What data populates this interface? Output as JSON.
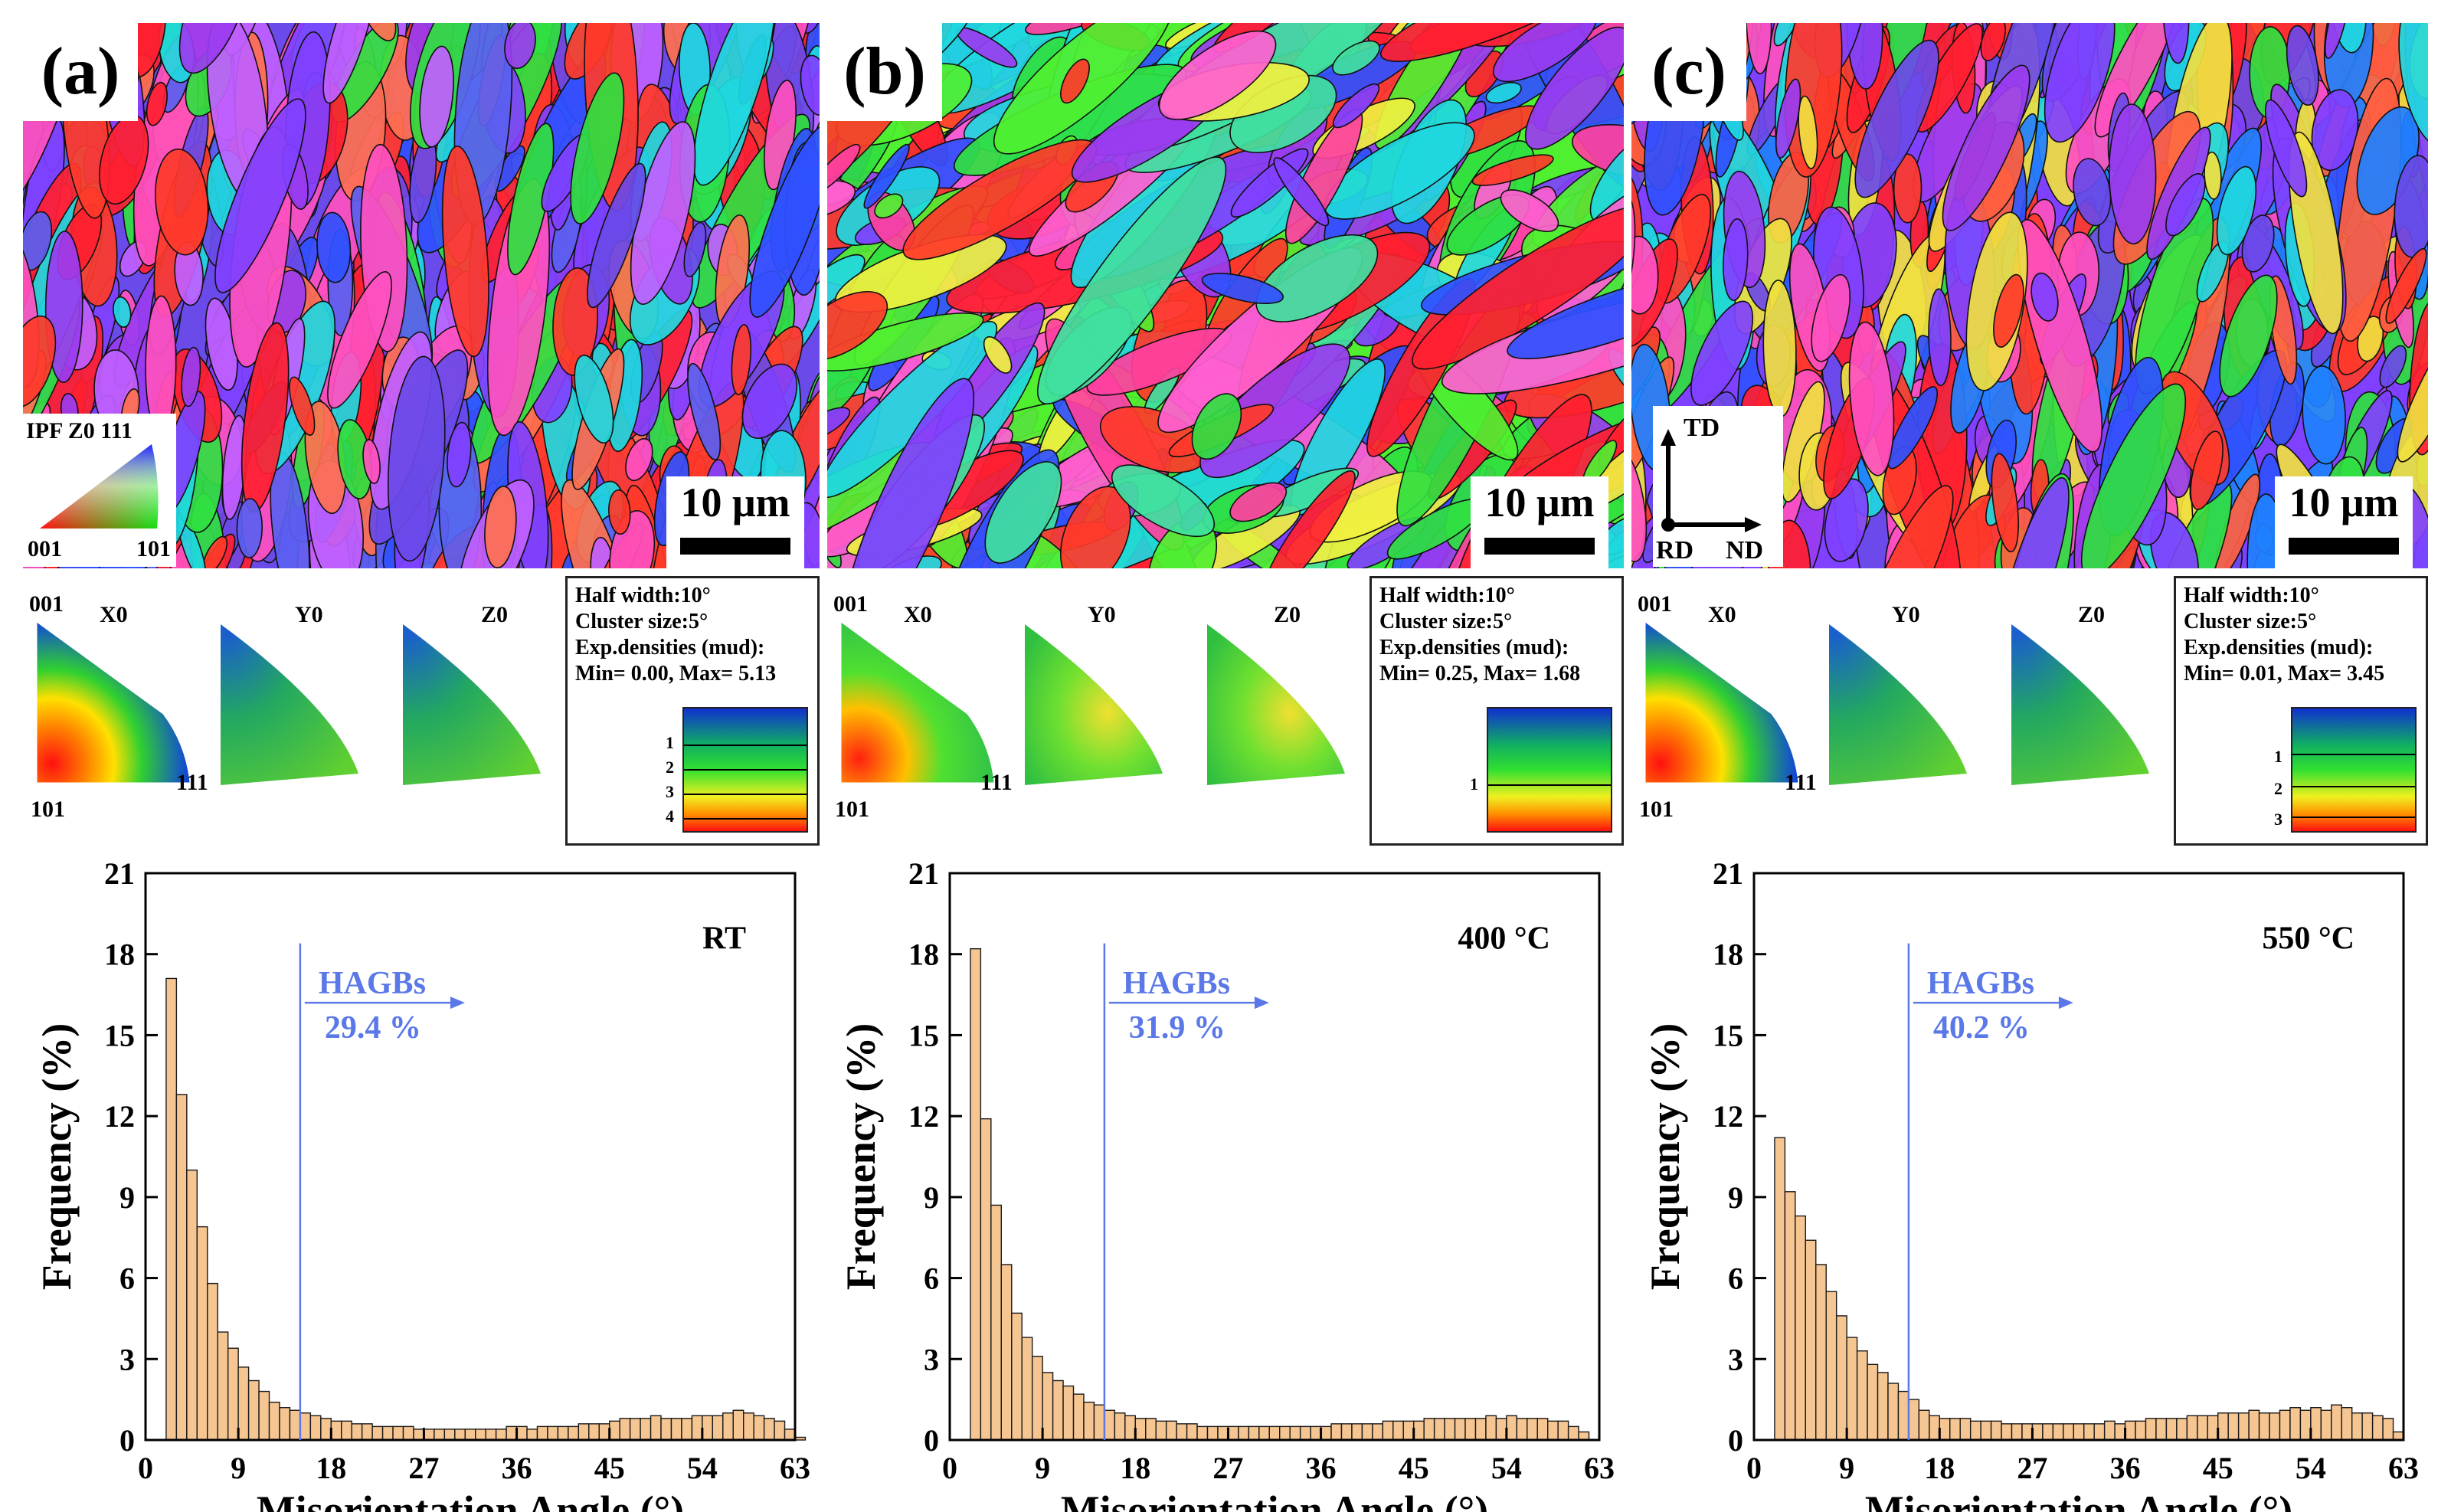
{
  "figure": {
    "panels": [
      {
        "label": "(a)",
        "scale_bar": "10 μm",
        "ipf_key": {
          "title": "IPF Z0 111",
          "corner_001": "001",
          "corner_101": "101"
        },
        "pole_figure": {
          "corner_001": "001",
          "corner_101": "101",
          "corner_111": "111",
          "titles": [
            "X0",
            "Y0",
            "Z0"
          ]
        },
        "legend": {
          "half_width": "Half width:10°",
          "cluster_size": "Cluster size:5°",
          "exp_densities": "Exp.densities (mud):",
          "min_max": "Min= 0.00, Max= 5.13",
          "ticks": [
            "1",
            "2",
            "3",
            "4"
          ]
        }
      },
      {
        "label": "(b)",
        "scale_bar": "10 μm",
        "pole_figure": {
          "corner_001": "001",
          "corner_101": "101",
          "corner_111": "111",
          "titles": [
            "X0",
            "Y0",
            "Z0"
          ]
        },
        "legend": {
          "half_width": "Half width:10°",
          "cluster_size": "Cluster size:5°",
          "exp_densities": "Exp.densities (mud):",
          "min_max": "Min= 0.25, Max= 1.68",
          "ticks": [
            "1"
          ]
        }
      },
      {
        "label": "(c)",
        "scale_bar": "10 μm",
        "axes_key": {
          "td": "TD",
          "rd": "RD",
          "nd": "ND"
        },
        "pole_figure": {
          "corner_001": "001",
          "corner_101": "101",
          "corner_111": "111",
          "titles": [
            "X0",
            "Y0",
            "Z0"
          ]
        },
        "legend": {
          "half_width": "Half width:10°",
          "cluster_size": "Cluster size:5°",
          "exp_densities": "Exp.densities (mud):",
          "min_max": "Min= 0.01, Max= 3.45",
          "ticks": [
            "1",
            "2",
            "3"
          ]
        }
      }
    ],
    "colors": {
      "bar_fill": "#f5c592",
      "bar_edge": "#1a1a1a",
      "hagb_line": "#5a78e8",
      "hagb_text": "#5a78e8"
    }
  },
  "chart_data": [
    {
      "type": "bar",
      "title": "RT",
      "xlabel": "Misorientation Angle (°)",
      "ylabel": "Frequency (%)",
      "xlim": [
        0,
        63
      ],
      "ylim": [
        0,
        21
      ],
      "xticks": [
        "0",
        "9",
        "18",
        "27",
        "36",
        "45",
        "54",
        "63"
      ],
      "yticks": [
        "0",
        "3",
        "6",
        "9",
        "12",
        "15",
        "18",
        "21"
      ],
      "bin_width": 1,
      "bin_start": 2,
      "values": [
        17.1,
        12.8,
        10.0,
        7.9,
        5.8,
        4.0,
        3.4,
        2.7,
        2.2,
        1.8,
        1.4,
        1.2,
        1.1,
        1.0,
        0.9,
        0.8,
        0.7,
        0.7,
        0.6,
        0.6,
        0.5,
        0.5,
        0.5,
        0.5,
        0.4,
        0.4,
        0.4,
        0.4,
        0.4,
        0.4,
        0.4,
        0.4,
        0.4,
        0.5,
        0.5,
        0.4,
        0.5,
        0.5,
        0.5,
        0.5,
        0.6,
        0.6,
        0.6,
        0.7,
        0.8,
        0.8,
        0.8,
        0.9,
        0.8,
        0.8,
        0.8,
        0.9,
        0.9,
        0.9,
        1.0,
        1.1,
        1.0,
        0.9,
        0.8,
        0.7,
        0.4,
        0.1
      ],
      "hagb_threshold_deg": 15,
      "hagb_label": "HAGBs",
      "hagb_percent": "29.4 %"
    },
    {
      "type": "bar",
      "title": "400 °C",
      "xlabel": "Misorientation Angle (°)",
      "ylabel": "Frequency (%)",
      "xlim": [
        0,
        63
      ],
      "ylim": [
        0,
        21
      ],
      "xticks": [
        "0",
        "9",
        "18",
        "27",
        "36",
        "45",
        "54",
        "63"
      ],
      "yticks": [
        "0",
        "3",
        "6",
        "9",
        "12",
        "15",
        "18",
        "21"
      ],
      "bin_width": 1,
      "bin_start": 2,
      "values": [
        18.2,
        11.9,
        8.7,
        6.5,
        4.7,
        3.8,
        3.1,
        2.5,
        2.2,
        2.0,
        1.7,
        1.4,
        1.3,
        1.1,
        1.0,
        0.9,
        0.8,
        0.8,
        0.7,
        0.7,
        0.6,
        0.6,
        0.5,
        0.5,
        0.5,
        0.5,
        0.5,
        0.5,
        0.5,
        0.5,
        0.5,
        0.5,
        0.5,
        0.5,
        0.5,
        0.6,
        0.6,
        0.6,
        0.6,
        0.6,
        0.7,
        0.7,
        0.7,
        0.7,
        0.8,
        0.8,
        0.8,
        0.8,
        0.8,
        0.8,
        0.9,
        0.8,
        0.9,
        0.8,
        0.8,
        0.8,
        0.7,
        0.7,
        0.5,
        0.3
      ],
      "hagb_threshold_deg": 15,
      "hagb_label": "HAGBs",
      "hagb_percent": "31.9 %"
    },
    {
      "type": "bar",
      "title": "550 °C",
      "xlabel": "Misorientation Angle (°)",
      "ylabel": "Frequency (%)",
      "xlim": [
        0,
        63
      ],
      "ylim": [
        0,
        21
      ],
      "xticks": [
        "0",
        "9",
        "18",
        "27",
        "36",
        "45",
        "54",
        "63"
      ],
      "yticks": [
        "0",
        "3",
        "6",
        "9",
        "12",
        "15",
        "18",
        "21"
      ],
      "bin_width": 1,
      "bin_start": 2,
      "values": [
        11.2,
        9.2,
        8.3,
        7.4,
        6.5,
        5.5,
        4.6,
        3.8,
        3.3,
        2.8,
        2.5,
        2.1,
        1.8,
        1.5,
        1.1,
        0.9,
        0.8,
        0.8,
        0.8,
        0.7,
        0.7,
        0.7,
        0.6,
        0.6,
        0.6,
        0.6,
        0.6,
        0.6,
        0.6,
        0.6,
        0.6,
        0.6,
        0.7,
        0.6,
        0.7,
        0.7,
        0.8,
        0.8,
        0.8,
        0.8,
        0.9,
        0.9,
        0.9,
        1.0,
        1.0,
        1.0,
        1.1,
        1.0,
        1.0,
        1.1,
        1.2,
        1.1,
        1.2,
        1.1,
        1.3,
        1.2,
        1.0,
        1.0,
        0.9,
        0.8,
        0.3
      ],
      "hagb_threshold_deg": 15,
      "hagb_label": "HAGBs",
      "hagb_percent": "40.2 %"
    }
  ]
}
